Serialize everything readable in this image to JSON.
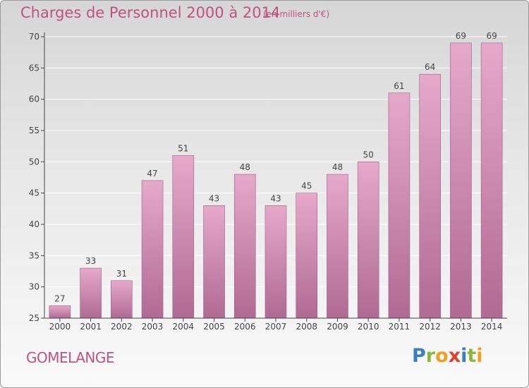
{
  "header": {
    "title": "Charges de Personnel 2000 à 2014",
    "subtitle": "(en milliers d'€)"
  },
  "footer": {
    "place": "GOMELANGE",
    "logo_text": "Proxiti",
    "logo_letters": [
      {
        "ch": "P",
        "color": "#3a7fc4"
      },
      {
        "ch": "r",
        "color": "#8bb83a"
      },
      {
        "ch": "o",
        "color": "#f0a020"
      },
      {
        "ch": "x",
        "color": "#e0412e"
      },
      {
        "ch": "i",
        "color": "#3a7fc4"
      },
      {
        "ch": "t",
        "color": "#8bb83a"
      },
      {
        "ch": "i",
        "color": "#f0a020"
      }
    ]
  },
  "colors": {
    "accent": "#c0527f",
    "bar_top": "#e6a9ca",
    "bar_bottom": "#b06a93"
  },
  "chart_data": {
    "type": "bar",
    "categories": [
      "2000",
      "2001",
      "2002",
      "2003",
      "2004",
      "2005",
      "2006",
      "2007",
      "2008",
      "2009",
      "2010",
      "2011",
      "2012",
      "2013",
      "2014"
    ],
    "values": [
      27,
      33,
      31,
      47,
      51,
      43,
      48,
      43,
      45,
      48,
      50,
      61,
      64,
      69,
      69
    ],
    "ylim": [
      25,
      70
    ],
    "yticks": [
      25,
      30,
      35,
      40,
      45,
      50,
      55,
      60,
      65,
      70
    ],
    "grid": true
  }
}
